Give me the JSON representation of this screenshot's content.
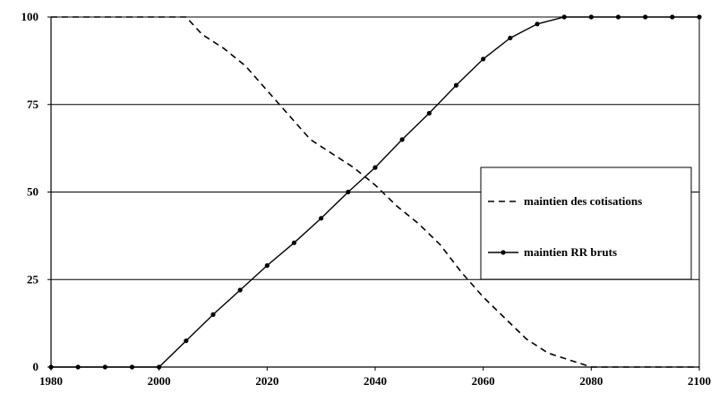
{
  "chart_data": {
    "type": "line",
    "title": "",
    "xlabel": "",
    "ylabel": "",
    "xlim": [
      1980,
      2100
    ],
    "ylim": [
      0,
      100
    ],
    "x_ticks": [
      1980,
      2000,
      2020,
      2040,
      2060,
      2080,
      2100
    ],
    "y_ticks": [
      0,
      25,
      50,
      75,
      100
    ],
    "grid": "horizontal",
    "legend_position": "right",
    "series": [
      {
        "name": "maintien des cotisations",
        "style": "dashed",
        "color": "#000000",
        "points": [
          [
            1980,
            100
          ],
          [
            1985,
            100
          ],
          [
            1990,
            100
          ],
          [
            1995,
            100
          ],
          [
            2000,
            100
          ],
          [
            2005,
            100
          ],
          [
            2008,
            95
          ],
          [
            2012,
            91
          ],
          [
            2016,
            86
          ],
          [
            2020,
            79
          ],
          [
            2024,
            72
          ],
          [
            2028,
            65
          ],
          [
            2032,
            61
          ],
          [
            2036,
            57
          ],
          [
            2040,
            52
          ],
          [
            2044,
            46
          ],
          [
            2048,
            41
          ],
          [
            2052,
            35
          ],
          [
            2056,
            27
          ],
          [
            2060,
            20
          ],
          [
            2064,
            14
          ],
          [
            2068,
            8
          ],
          [
            2072,
            4
          ],
          [
            2076,
            2
          ],
          [
            2078,
            1
          ],
          [
            2080,
            0
          ],
          [
            2090,
            0
          ],
          [
            2100,
            0
          ]
        ]
      },
      {
        "name": "maintien RR bruts",
        "style": "solid-markers",
        "color": "#000000",
        "points": [
          [
            1980,
            0
          ],
          [
            1985,
            0
          ],
          [
            1990,
            0
          ],
          [
            1995,
            0
          ],
          [
            2000,
            0
          ],
          [
            2005,
            7.5
          ],
          [
            2010,
            15
          ],
          [
            2015,
            22
          ],
          [
            2020,
            29
          ],
          [
            2025,
            35.5
          ],
          [
            2030,
            42.5
          ],
          [
            2035,
            50
          ],
          [
            2040,
            57
          ],
          [
            2045,
            65
          ],
          [
            2050,
            72.5
          ],
          [
            2055,
            80.5
          ],
          [
            2060,
            88
          ],
          [
            2065,
            94
          ],
          [
            2070,
            98
          ],
          [
            2075,
            100
          ],
          [
            2080,
            100
          ],
          [
            2085,
            100
          ],
          [
            2090,
            100
          ],
          [
            2095,
            100
          ],
          [
            2100,
            100
          ]
        ]
      }
    ]
  }
}
